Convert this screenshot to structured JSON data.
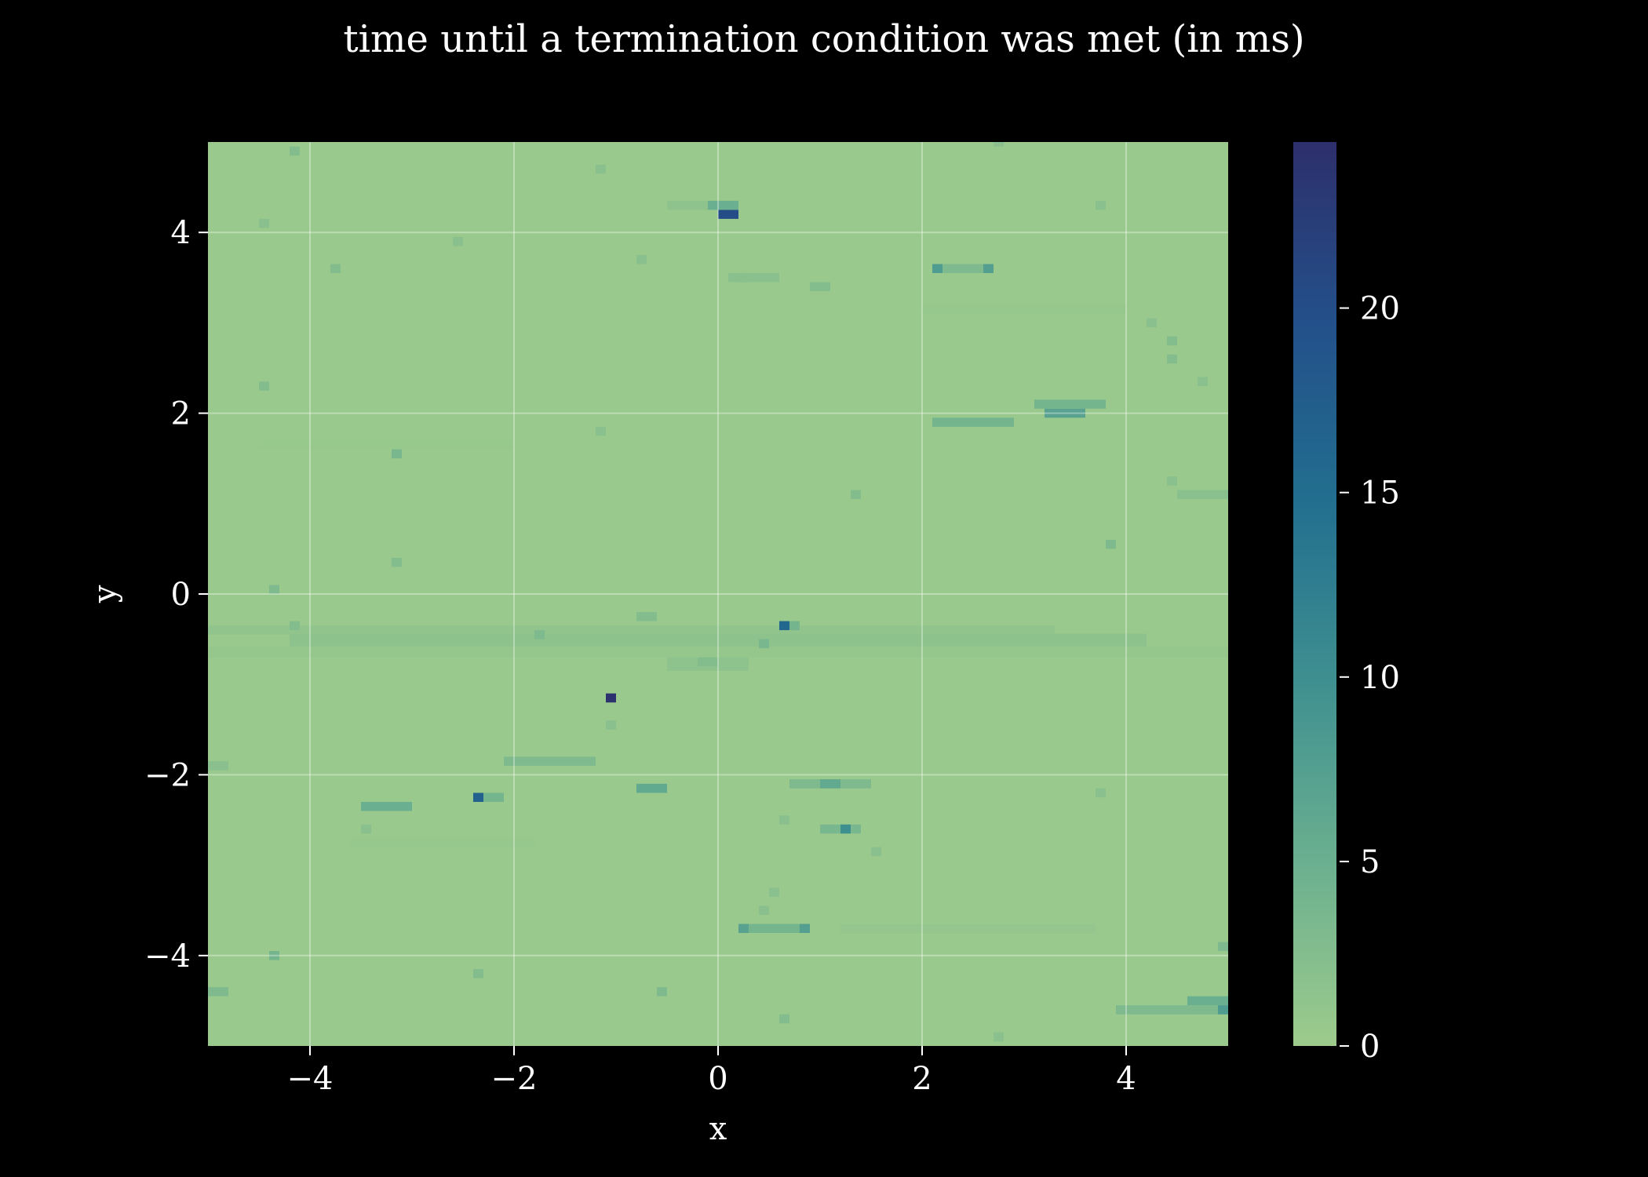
{
  "chart_data": {
    "type": "heatmap",
    "title": "time until a termination condition was met (in ms)",
    "xlabel": "x",
    "ylabel": "y",
    "xlim": [
      -5,
      5
    ],
    "ylim": [
      -5,
      5
    ],
    "x_ticks": [
      -4,
      -2,
      0,
      2,
      4
    ],
    "y_ticks": [
      -4,
      -2,
      0,
      2,
      4
    ],
    "x_tick_labels": [
      "−4",
      "−2",
      "0",
      "2",
      "4"
    ],
    "y_tick_labels": [
      "−4",
      "−2",
      "0",
      "2",
      "4"
    ],
    "grid": true,
    "grid_cells": 100,
    "background_value": 0.4,
    "colorbar": {
      "label": "",
      "range": [
        0,
        24.5
      ],
      "ticks": [
        0,
        5,
        10,
        15,
        20
      ],
      "tick_labels": [
        "0",
        "5",
        "10",
        "15",
        "20"
      ],
      "colormap": [
        "#9dcb8c",
        "#6bb08f",
        "#3f9090",
        "#226f8f",
        "#23508a",
        "#2d2f6b"
      ]
    },
    "bands": [
      {
        "x": [
          -5.0,
          3.3
        ],
        "y": [
          -0.45,
          -0.35
        ],
        "value": 1.2
      },
      {
        "x": [
          -4.2,
          4.2
        ],
        "y": [
          -0.58,
          -0.44
        ],
        "value": 1.6
      },
      {
        "x": [
          -5.0,
          5.0
        ],
        "y": [
          -0.7,
          -0.58
        ],
        "value": 0.8
      },
      {
        "x": [
          -0.5,
          0.3
        ],
        "y": [
          -0.85,
          -0.7
        ],
        "value": 1.5
      },
      {
        "x": [
          1.2,
          3.7
        ],
        "y": [
          -3.75,
          -3.65
        ],
        "value": 0.9
      },
      {
        "x": [
          -3.6,
          -1.8
        ],
        "y": [
          -2.8,
          -2.7
        ],
        "value": 0.7
      },
      {
        "x": [
          -4.5,
          -2.0
        ],
        "y": [
          1.6,
          1.7
        ],
        "value": 0.6
      },
      {
        "x": [
          2.0,
          4.0
        ],
        "y": [
          3.1,
          3.2
        ],
        "value": 0.7
      }
    ],
    "points": [
      {
        "x": [
          0.0,
          0.2
        ],
        "y": [
          4.15,
          4.25
        ],
        "value": 20.0
      },
      {
        "x": [
          -0.1,
          0.2
        ],
        "y": [
          4.25,
          4.35
        ],
        "value": 5.0
      },
      {
        "x": [
          -0.5,
          -0.1
        ],
        "y": [
          4.25,
          4.35
        ],
        "value": 1.5
      },
      {
        "x": [
          0.2,
          0.3
        ],
        "y": [
          3.45,
          3.55
        ],
        "value": 8.5
      },
      {
        "x": [
          0.1,
          0.6
        ],
        "y": [
          3.45,
          3.55
        ],
        "value": 2.0
      },
      {
        "x": [
          0.9,
          1.1
        ],
        "y": [
          3.35,
          3.45
        ],
        "value": 2.5
      },
      {
        "x": [
          2.1,
          2.2
        ],
        "y": [
          3.55,
          3.65
        ],
        "value": 8.0
      },
      {
        "x": [
          2.2,
          2.6
        ],
        "y": [
          3.55,
          3.65
        ],
        "value": 3.0
      },
      {
        "x": [
          2.6,
          2.7
        ],
        "y": [
          3.55,
          3.65
        ],
        "value": 7.5
      },
      {
        "x": [
          2.1,
          2.9
        ],
        "y": [
          1.85,
          1.95
        ],
        "value": 4.0
      },
      {
        "x": [
          3.1,
          3.8
        ],
        "y": [
          2.05,
          2.15
        ],
        "value": 4.0
      },
      {
        "x": [
          3.2,
          3.6
        ],
        "y": [
          1.95,
          2.05
        ],
        "value": 7.0
      },
      {
        "x": [
          0.6,
          0.7
        ],
        "y": [
          -0.4,
          -0.3
        ],
        "value": 16.0
      },
      {
        "x": [
          0.7,
          0.8
        ],
        "y": [
          -0.4,
          -0.3
        ],
        "value": 4.0
      },
      {
        "x": [
          -1.1,
          -1.0
        ],
        "y": [
          -1.2,
          -1.1
        ],
        "value": 24.0
      },
      {
        "x": [
          -2.4,
          -2.3
        ],
        "y": [
          -2.3,
          -2.2
        ],
        "value": 17.0
      },
      {
        "x": [
          -2.3,
          -2.1
        ],
        "y": [
          -2.3,
          -2.2
        ],
        "value": 4.0
      },
      {
        "x": [
          -0.8,
          -0.5
        ],
        "y": [
          -2.2,
          -2.1
        ],
        "value": 6.0
      },
      {
        "x": [
          -2.1,
          -1.2
        ],
        "y": [
          -1.9,
          -1.8
        ],
        "value": 3.0
      },
      {
        "x": [
          -3.5,
          -3.0
        ],
        "y": [
          -2.4,
          -2.3
        ],
        "value": 5.0
      },
      {
        "x": [
          0.7,
          1.5
        ],
        "y": [
          -2.15,
          -2.05
        ],
        "value": 3.0
      },
      {
        "x": [
          1.0,
          1.2
        ],
        "y": [
          -2.15,
          -2.05
        ],
        "value": 6.0
      },
      {
        "x": [
          1.0,
          1.4
        ],
        "y": [
          -2.65,
          -2.55
        ],
        "value": 3.5
      },
      {
        "x": [
          1.2,
          1.3
        ],
        "y": [
          -2.65,
          -2.55
        ],
        "value": 10.0
      },
      {
        "x": [
          0.2,
          0.9
        ],
        "y": [
          -3.75,
          -3.65
        ],
        "value": 4.0
      },
      {
        "x": [
          0.2,
          0.3
        ],
        "y": [
          -3.75,
          -3.65
        ],
        "value": 7.0
      },
      {
        "x": [
          0.8,
          0.9
        ],
        "y": [
          -3.75,
          -3.65
        ],
        "value": 7.5
      },
      {
        "x": [
          4.6,
          5.0
        ],
        "y": [
          -4.55,
          -4.45
        ],
        "value": 5.0
      },
      {
        "x": [
          3.9,
          5.0
        ],
        "y": [
          -4.65,
          -4.55
        ],
        "value": 3.0
      },
      {
        "x": [
          4.9,
          5.0
        ],
        "y": [
          -4.65,
          -4.55
        ],
        "value": 8.0
      },
      {
        "x": [
          -5.0,
          -4.8
        ],
        "y": [
          -4.45,
          -4.35
        ],
        "value": 3.0
      },
      {
        "x": [
          -4.4,
          -4.3
        ],
        "y": [
          -4.05,
          -3.95
        ],
        "value": 4.0
      },
      {
        "x": [
          -3.2,
          -3.1
        ],
        "y": [
          1.5,
          1.6
        ],
        "value": 3.5
      },
      {
        "x": [
          -3.2,
          -3.1
        ],
        "y": [
          0.3,
          0.4
        ],
        "value": 2.5
      },
      {
        "x": [
          -4.4,
          -4.3
        ],
        "y": [
          0.0,
          0.1
        ],
        "value": 3.0
      },
      {
        "x": [
          -4.2,
          -4.1
        ],
        "y": [
          -0.4,
          -0.3
        ],
        "value": 2.5
      },
      {
        "x": [
          -1.8,
          -1.7
        ],
        "y": [
          -0.5,
          -0.4
        ],
        "value": 3.0
      },
      {
        "x": [
          -0.8,
          -0.6
        ],
        "y": [
          -0.3,
          -0.2
        ],
        "value": 2.5
      },
      {
        "x": [
          -0.2,
          0.0
        ],
        "y": [
          -0.8,
          -0.7
        ],
        "value": 2.5
      },
      {
        "x": [
          0.4,
          0.5
        ],
        "y": [
          -0.6,
          -0.5
        ],
        "value": 3.5
      },
      {
        "x": [
          3.8,
          3.9
        ],
        "y": [
          0.5,
          0.6
        ],
        "value": 3.0
      },
      {
        "x": [
          4.5,
          5.0
        ],
        "y": [
          1.05,
          1.15
        ],
        "value": 2.0
      },
      {
        "x": [
          4.4,
          4.5
        ],
        "y": [
          1.2,
          1.3
        ],
        "value": 2.0
      },
      {
        "x": [
          4.4,
          4.5
        ],
        "y": [
          2.55,
          2.65
        ],
        "value": 2.5
      },
      {
        "x": [
          4.4,
          4.5
        ],
        "y": [
          2.75,
          2.85
        ],
        "value": 2.5
      },
      {
        "x": [
          4.7,
          4.8
        ],
        "y": [
          2.3,
          2.4
        ],
        "value": 2.0
      },
      {
        "x": [
          4.2,
          4.3
        ],
        "y": [
          2.95,
          3.05
        ],
        "value": 2.0
      },
      {
        "x": [
          -4.2,
          -4.1
        ],
        "y": [
          4.85,
          4.95
        ],
        "value": 2.5
      },
      {
        "x": [
          -1.2,
          -1.1
        ],
        "y": [
          4.65,
          4.75
        ],
        "value": 2.0
      },
      {
        "x": [
          -4.5,
          -4.4
        ],
        "y": [
          4.05,
          4.15
        ],
        "value": 2.0
      },
      {
        "x": [
          -3.8,
          -3.7
        ],
        "y": [
          3.55,
          3.65
        ],
        "value": 2.5
      },
      {
        "x": [
          -0.8,
          -0.7
        ],
        "y": [
          3.65,
          3.75
        ],
        "value": 2.0
      },
      {
        "x": [
          -2.6,
          -2.5
        ],
        "y": [
          3.85,
          3.95
        ],
        "value": 2.0
      },
      {
        "x": [
          -4.5,
          -4.4
        ],
        "y": [
          2.25,
          2.35
        ],
        "value": 2.5
      },
      {
        "x": [
          -1.2,
          -1.1
        ],
        "y": [
          1.75,
          1.85
        ],
        "value": 2.0
      },
      {
        "x": [
          1.3,
          1.4
        ],
        "y": [
          1.05,
          1.15
        ],
        "value": 2.5
      },
      {
        "x": [
          3.7,
          3.8
        ],
        "y": [
          4.25,
          4.35
        ],
        "value": 2.0
      },
      {
        "x": [
          2.7,
          2.8
        ],
        "y": [
          4.95,
          5.0
        ],
        "value": 2.0
      },
      {
        "x": [
          -0.6,
          -0.5
        ],
        "y": [
          -4.45,
          -4.35
        ],
        "value": 3.0
      },
      {
        "x": [
          -2.4,
          -2.3
        ],
        "y": [
          -4.25,
          -4.15
        ],
        "value": 2.5
      },
      {
        "x": [
          0.6,
          0.7
        ],
        "y": [
          -4.75,
          -4.65
        ],
        "value": 2.5
      },
      {
        "x": [
          -1.1,
          -1.0
        ],
        "y": [
          -1.5,
          -1.4
        ],
        "value": 2.0
      },
      {
        "x": [
          3.7,
          3.8
        ],
        "y": [
          -2.25,
          -2.15
        ],
        "value": 2.0
      },
      {
        "x": [
          1.5,
          1.6
        ],
        "y": [
          -2.9,
          -2.8
        ],
        "value": 2.0
      },
      {
        "x": [
          0.5,
          0.6
        ],
        "y": [
          -3.35,
          -3.25
        ],
        "value": 2.0
      },
      {
        "x": [
          0.4,
          0.5
        ],
        "y": [
          -3.55,
          -3.45
        ],
        "value": 2.0
      },
      {
        "x": [
          -5.0,
          -4.8
        ],
        "y": [
          -1.95,
          -1.85
        ],
        "value": 2.0
      },
      {
        "x": [
          4.9,
          5.0
        ],
        "y": [
          -3.95,
          -3.85
        ],
        "value": 3.0
      },
      {
        "x": [
          2.7,
          2.8
        ],
        "y": [
          -4.95,
          -4.85
        ],
        "value": 2.0
      },
      {
        "x": [
          -3.5,
          -3.4
        ],
        "y": [
          -2.65,
          -2.55
        ],
        "value": 2.0
      },
      {
        "x": [
          0.6,
          0.7
        ],
        "y": [
          -2.55,
          -2.45
        ],
        "value": 2.0
      }
    ]
  }
}
